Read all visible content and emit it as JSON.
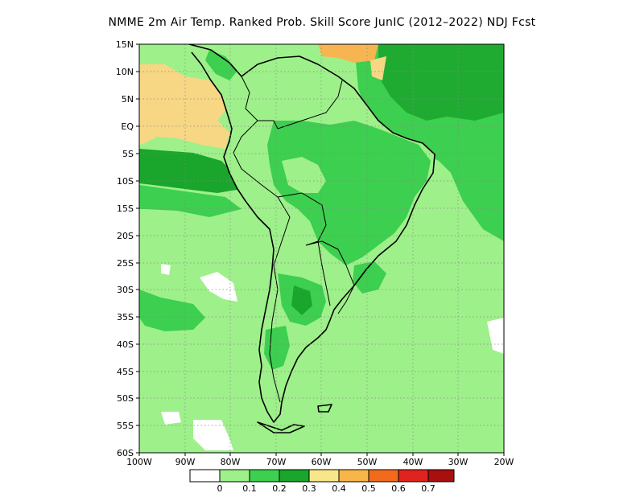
{
  "title": "NMME  2m Air Temp. Ranked Prob. Skill Score JunIC (2012–2022) NDJ Fcst",
  "map": {
    "region": "South America",
    "lat_labels": [
      "15N",
      "10N",
      "5N",
      "EQ",
      "5S",
      "10S",
      "15S",
      "20S",
      "25S",
      "30S",
      "35S",
      "40S",
      "45S",
      "50S",
      "55S",
      "60S"
    ],
    "lon_labels": [
      "100W",
      "90W",
      "80W",
      "70W",
      "60W",
      "50W",
      "40W",
      "30W",
      "20W"
    ],
    "colors": {
      "ocean_background": "#9ef08a",
      "skill_0_1_to_0_2": "#9ef08a",
      "skill_0_2_to_0_3": "#3dcf4f",
      "skill_0_3_plus": "#1aa52c",
      "skill_0_4_to_0_5": "#f7d784",
      "skill_0_5_to_0_6": "#f6b550",
      "coastline": "#000000"
    }
  },
  "colorbar": {
    "colors": [
      "#ffffff",
      "#9ef08a",
      "#3dcf4f",
      "#1aa52c",
      "#f7e78a",
      "#f7b54a",
      "#f26b1d",
      "#e0231e",
      "#a80f0f"
    ],
    "labels": [
      "0",
      "0.1",
      "0.2",
      "0.3",
      "0.4",
      "0.5",
      "0.6",
      "0.7"
    ]
  }
}
